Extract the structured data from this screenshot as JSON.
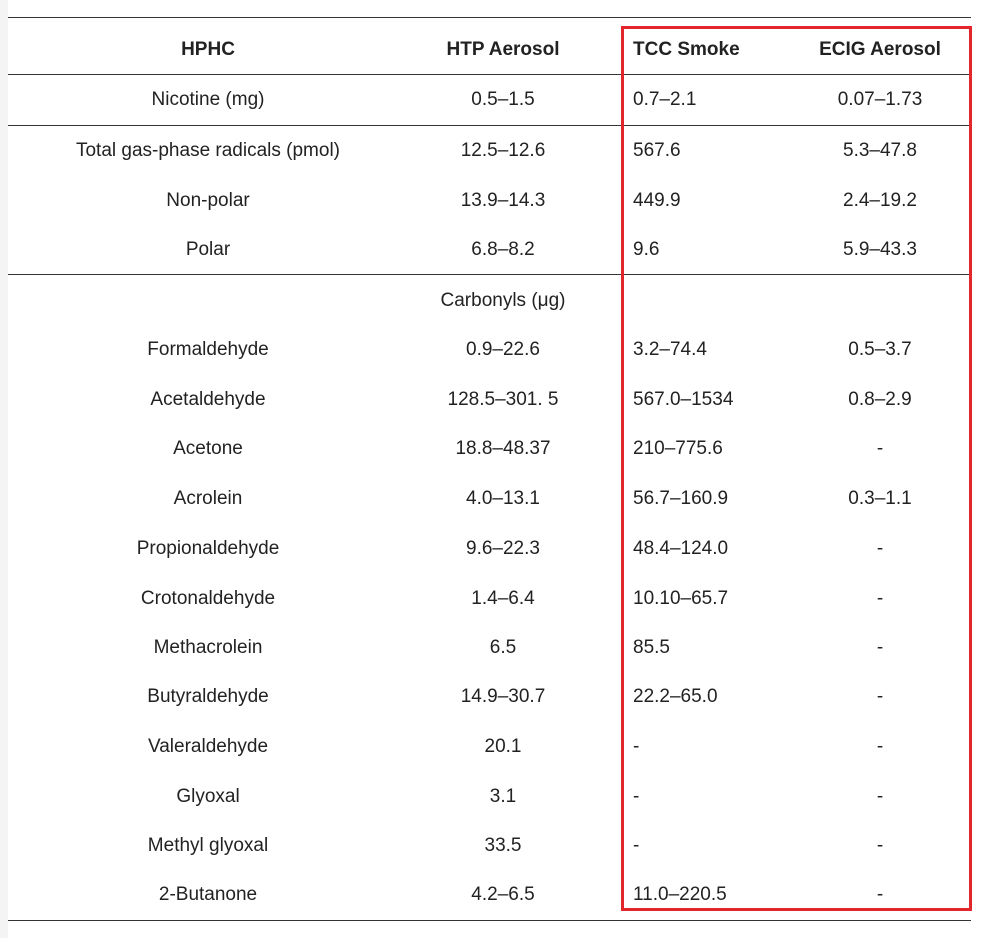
{
  "table": {
    "headers": [
      "HPHC",
      "HTP Aerosol",
      "TCC Smoke",
      "ECIG Aerosol"
    ],
    "rows": [
      {
        "hphc": "Nicotine (mg)",
        "htp": "0.5–1.5",
        "tcc": "0.7–2.1",
        "ecig": "0.07–1.73"
      },
      {
        "hphc": "Total gas-phase radicals (pmol)",
        "htp": "12.5–12.6",
        "tcc": "567.6",
        "ecig": "5.3–47.8"
      },
      {
        "hphc": "Non-polar",
        "htp": "13.9–14.3",
        "tcc": "449.9",
        "ecig": "2.4–19.2"
      },
      {
        "hphc": "Polar",
        "htp": "6.8–8.2",
        "tcc": "9.6",
        "ecig": "5.9–43.3"
      },
      {
        "hphc": "Formaldehyde",
        "htp": "0.9–22.6",
        "tcc": "3.2–74.4",
        "ecig": "0.5–3.7"
      },
      {
        "hphc": "Acetaldehyde",
        "htp": "128.5–301. 5",
        "tcc": "567.0–1534",
        "ecig": "0.8–2.9"
      },
      {
        "hphc": "Acetone",
        "htp": "18.8–48.37",
        "tcc": "210–775.6",
        "ecig": "-"
      },
      {
        "hphc": "Acrolein",
        "htp": "4.0–13.1",
        "tcc": "56.7–160.9",
        "ecig": "0.3–1.1"
      },
      {
        "hphc": "Propionaldehyde",
        "htp": "9.6–22.3",
        "tcc": "48.4–124.0",
        "ecig": "-"
      },
      {
        "hphc": "Crotonaldehyde",
        "htp": "1.4–6.4",
        "tcc": "10.10–65.7",
        "ecig": "-"
      },
      {
        "hphc": "Methacrolein",
        "htp": "6.5",
        "tcc": "85.5",
        "ecig": "-"
      },
      {
        "hphc": "Butyraldehyde",
        "htp": "14.9–30.7",
        "tcc": "22.2–65.0",
        "ecig": "-"
      },
      {
        "hphc": "Valeraldehyde",
        "htp": "20.1",
        "tcc": "-",
        "ecig": "-"
      },
      {
        "hphc": "Glyoxal",
        "htp": "3.1",
        "tcc": "-",
        "ecig": "-"
      },
      {
        "hphc": "Methyl glyoxal",
        "htp": "33.5",
        "tcc": "-",
        "ecig": "-"
      },
      {
        "hphc": "2-Butanone",
        "htp": "4.2–6.5",
        "tcc": "11.0–220.5",
        "ecig": "-"
      }
    ],
    "section_label": "Carbonyls (μg)"
  },
  "colors": {
    "highlight_border": "#e3262c",
    "rule": "#333333"
  }
}
